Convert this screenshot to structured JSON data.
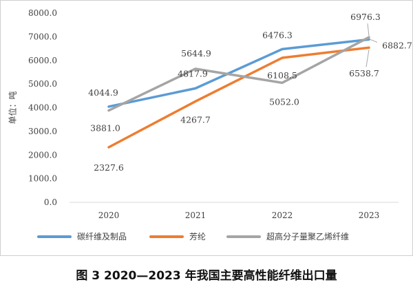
{
  "chart_data": {
    "type": "line",
    "categories": [
      "2020",
      "2021",
      "2022",
      "2023"
    ],
    "ylabel": "单位：吨",
    "ylim": [
      0,
      8000
    ],
    "ytick_labels": [
      "0.0",
      "1000.0",
      "2000.0",
      "3000.0",
      "4000.0",
      "5000.0",
      "6000.0",
      "7000.0",
      "8000.0"
    ],
    "grid": false,
    "legend_position": "bottom",
    "series": [
      {
        "name": "碳纤维及制品",
        "color": "#5B9BD5",
        "values": [
          4044.9,
          4817.9,
          6476.3,
          6882.7
        ],
        "labels": [
          "4044.9",
          "4817.9",
          "6476.3",
          "6882.7"
        ]
      },
      {
        "name": "芳纶",
        "color": "#ED7D31",
        "values": [
          2327.6,
          4267.7,
          6108.5,
          6538.7
        ],
        "labels": [
          "2327.6",
          "4267.7",
          "6108.5",
          "6538.7"
        ]
      },
      {
        "name": "超高分子量聚乙烯纤维",
        "color": "#A5A5A5",
        "values": [
          3881.0,
          5644.9,
          5052.0,
          6976.3
        ],
        "labels": [
          "3881.0",
          "5644.9",
          "5052.0",
          "6976.3"
        ]
      }
    ]
  },
  "caption": "图 3 2020—2023 年我国主要高性能纤维出口量"
}
